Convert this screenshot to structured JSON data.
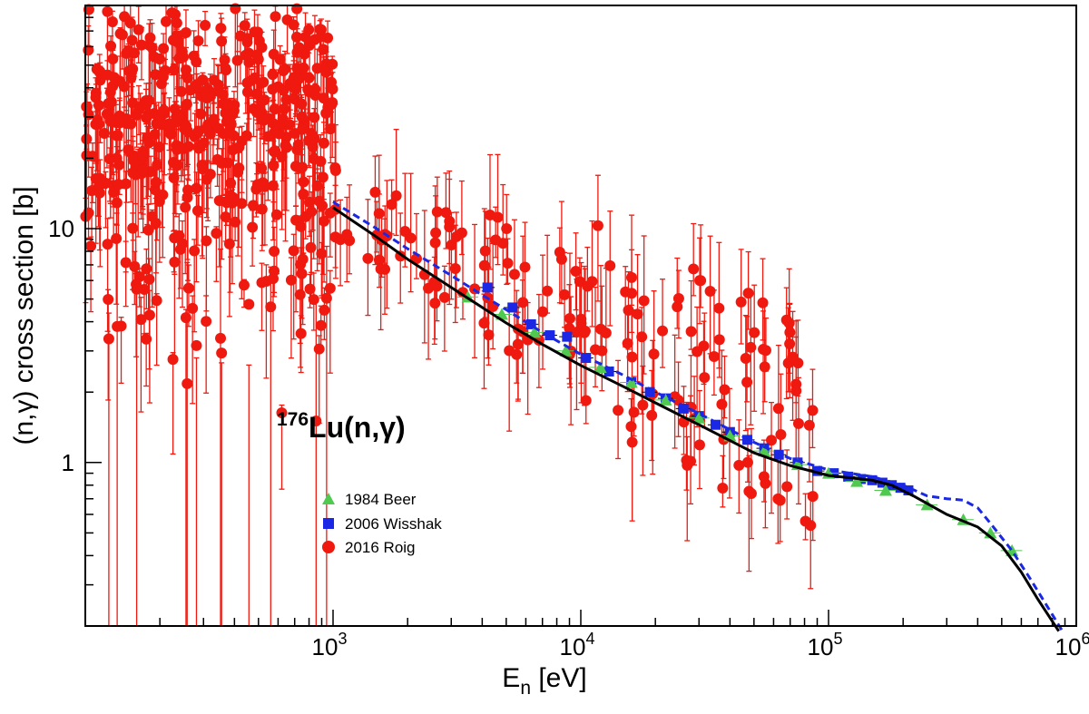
{
  "chart_data": {
    "type": "scatter",
    "xlabel_main": "E",
    "xlabel_sub": "n",
    "xlabel_rest": " [eV]",
    "ylabel": "(n,γ) cross section [b]",
    "xscale": "log",
    "yscale": "log",
    "xlim": [
      100,
      1000000
    ],
    "ylim": [
      0.2,
      90
    ],
    "x_tick_labels": [
      {
        "x": 1000,
        "base": "10",
        "exp": "3"
      },
      {
        "x": 10000,
        "base": "10",
        "exp": "4"
      },
      {
        "x": 100000,
        "base": "10",
        "exp": "5"
      },
      {
        "x": 1000000,
        "base": "10",
        "exp": "6"
      }
    ],
    "y_tick_labels": [
      {
        "y": 1,
        "label": "1"
      },
      {
        "y": 10,
        "label": "10"
      }
    ],
    "annotation": {
      "sup": "176",
      "text": "Lu(n,γ)"
    },
    "colors": {
      "beer": "#4fc94f",
      "wisshak": "#1a28e6",
      "roig": "#f0190f",
      "line_solid": "#000000",
      "line_dashed": "#1a28e6"
    },
    "legend": [
      {
        "label": "1984 Beer",
        "marker": "triangle"
      },
      {
        "label": "2006 Wisshak",
        "marker": "square"
      },
      {
        "label": "2016 Roig",
        "marker": "circle"
      }
    ],
    "series": [
      {
        "name": "1984 Beer",
        "marker": "triangle",
        "points": [
          [
            3500,
            5.1
          ],
          [
            4800,
            4.3
          ],
          [
            6500,
            3.6
          ],
          [
            8700,
            3.0
          ],
          [
            12000,
            2.55
          ],
          [
            16000,
            2.2
          ],
          [
            22000,
            1.85
          ],
          [
            30000,
            1.55
          ],
          [
            40000,
            1.3
          ],
          [
            55000,
            1.12
          ],
          [
            75000,
            0.98
          ],
          [
            100000,
            0.9
          ],
          [
            130000,
            0.83
          ],
          [
            170000,
            0.76
          ],
          [
            250000,
            0.66
          ],
          [
            350000,
            0.57
          ],
          [
            450000,
            0.5
          ],
          [
            550000,
            0.42
          ]
        ]
      },
      {
        "name": "2006 Wisshak",
        "marker": "square",
        "points": [
          [
            4200,
            5.6
          ],
          [
            5300,
            4.6
          ],
          [
            6300,
            3.9
          ],
          [
            7500,
            3.5
          ],
          [
            8800,
            3.45
          ],
          [
            10500,
            2.8
          ],
          [
            13000,
            2.45
          ],
          [
            16000,
            2.2
          ],
          [
            19000,
            2.0
          ],
          [
            22000,
            1.88
          ],
          [
            26000,
            1.7
          ],
          [
            30000,
            1.58
          ],
          [
            35000,
            1.45
          ],
          [
            40000,
            1.35
          ],
          [
            47000,
            1.25
          ],
          [
            55000,
            1.15
          ],
          [
            63000,
            1.08
          ],
          [
            75000,
            1.0
          ],
          [
            90000,
            0.92
          ],
          [
            105000,
            0.9
          ],
          [
            120000,
            0.87
          ],
          [
            135000,
            0.85
          ],
          [
            150000,
            0.84
          ],
          [
            165000,
            0.82
          ],
          [
            180000,
            0.8
          ],
          [
            195000,
            0.78
          ],
          [
            210000,
            0.76
          ]
        ]
      },
      {
        "name": "2016 Roig",
        "marker": "circle"
      }
    ],
    "line_solid": [
      [
        1000,
        12.3
      ],
      [
        1500,
        9.2
      ],
      [
        2000,
        7.4
      ],
      [
        3000,
        5.6
      ],
      [
        4000,
        4.6
      ],
      [
        5000,
        3.95
      ],
      [
        7000,
        3.2
      ],
      [
        10000,
        2.6
      ],
      [
        15000,
        2.1
      ],
      [
        20000,
        1.8
      ],
      [
        30000,
        1.45
      ],
      [
        50000,
        1.1
      ],
      [
        70000,
        0.97
      ],
      [
        100000,
        0.88
      ],
      [
        150000,
        0.84
      ],
      [
        180000,
        0.8
      ],
      [
        220000,
        0.72
      ],
      [
        300000,
        0.6
      ],
      [
        400000,
        0.53
      ],
      [
        500000,
        0.44
      ],
      [
        600000,
        0.34
      ],
      [
        700000,
        0.26
      ],
      [
        850000,
        0.19
      ]
    ],
    "line_dashed": [
      [
        1000,
        13.0
      ],
      [
        1500,
        10.0
      ],
      [
        2000,
        8.2
      ],
      [
        3000,
        6.3
      ],
      [
        4000,
        5.2
      ],
      [
        5000,
        4.5
      ],
      [
        7000,
        3.6
      ],
      [
        10000,
        2.9
      ],
      [
        15000,
        2.35
      ],
      [
        20000,
        2.0
      ],
      [
        30000,
        1.62
      ],
      [
        50000,
        1.22
      ],
      [
        70000,
        1.04
      ],
      [
        100000,
        0.93
      ],
      [
        150000,
        0.87
      ],
      [
        200000,
        0.8
      ],
      [
        250000,
        0.72
      ],
      [
        300000,
        0.7
      ],
      [
        350000,
        0.69
      ],
      [
        400000,
        0.64
      ],
      [
        450000,
        0.55
      ],
      [
        550000,
        0.42
      ],
      [
        650000,
        0.32
      ],
      [
        750000,
        0.25
      ],
      [
        880000,
        0.19
      ]
    ]
  }
}
